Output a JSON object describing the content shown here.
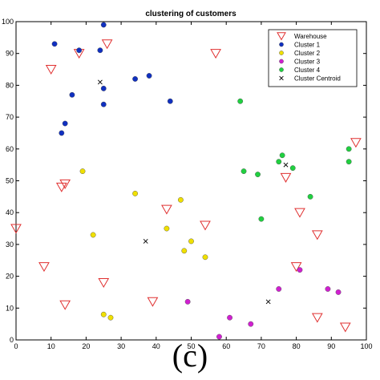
{
  "chart_data": {
    "type": "scatter",
    "title": "clustering of customers",
    "xlim": [
      0,
      100
    ],
    "ylim": [
      0,
      100
    ],
    "xticks": [
      0,
      10,
      20,
      30,
      40,
      50,
      60,
      70,
      80,
      90,
      100
    ],
    "yticks": [
      0,
      10,
      20,
      30,
      40,
      50,
      60,
      70,
      80,
      90,
      100
    ],
    "grid": false,
    "legend_position": "top-right",
    "series": [
      {
        "name": "Warehouse",
        "marker": "triangle-down-open",
        "color": "#e03030",
        "points": [
          [
            18,
            90
          ],
          [
            26,
            93
          ],
          [
            10,
            85
          ],
          [
            57,
            90
          ],
          [
            13,
            48
          ],
          [
            14,
            49
          ],
          [
            97,
            62
          ],
          [
            77,
            51
          ],
          [
            43,
            41
          ],
          [
            81,
            40
          ],
          [
            0,
            35
          ],
          [
            54,
            36
          ],
          [
            86,
            33
          ],
          [
            8,
            23
          ],
          [
            80,
            23
          ],
          [
            25,
            18
          ],
          [
            14,
            11
          ],
          [
            39,
            12
          ],
          [
            86,
            7
          ],
          [
            94,
            4
          ]
        ]
      },
      {
        "name": "Cluster 1",
        "marker": "circle",
        "color": "#1030c0",
        "points": [
          [
            25,
            99
          ],
          [
            11,
            93
          ],
          [
            18,
            91
          ],
          [
            24,
            91
          ],
          [
            38,
            83
          ],
          [
            34,
            82
          ],
          [
            25,
            79
          ],
          [
            16,
            77
          ],
          [
            44,
            75
          ],
          [
            25,
            74
          ],
          [
            14,
            68
          ],
          [
            13,
            65
          ]
        ]
      },
      {
        "name": "Cluster 2",
        "marker": "circle",
        "color": "#f0e000",
        "points": [
          [
            19,
            53
          ],
          [
            34,
            46
          ],
          [
            47,
            44
          ],
          [
            43,
            35
          ],
          [
            22,
            33
          ],
          [
            50,
            31
          ],
          [
            48,
            28
          ],
          [
            54,
            26
          ],
          [
            25,
            8
          ],
          [
            27,
            7
          ]
        ]
      },
      {
        "name": "Cluster 3",
        "marker": "circle",
        "color": "#d020d0",
        "points": [
          [
            81,
            22
          ],
          [
            75,
            16
          ],
          [
            89,
            16
          ],
          [
            92,
            15
          ],
          [
            49,
            12
          ],
          [
            61,
            7
          ],
          [
            67,
            5
          ],
          [
            58,
            1
          ]
        ]
      },
      {
        "name": "Cluster 4",
        "marker": "circle",
        "color": "#20d040",
        "points": [
          [
            64,
            75
          ],
          [
            95,
            60
          ],
          [
            76,
            58
          ],
          [
            75,
            56
          ],
          [
            95,
            56
          ],
          [
            79,
            54
          ],
          [
            65,
            53
          ],
          [
            69,
            52
          ],
          [
            84,
            45
          ],
          [
            70,
            38
          ]
        ]
      },
      {
        "name": "Cluster Centroid",
        "marker": "x",
        "color": "#000000",
        "points": [
          [
            24,
            81
          ],
          [
            77,
            55
          ],
          [
            37,
            31
          ],
          [
            72,
            12
          ]
        ]
      }
    ]
  },
  "caption": "(c)"
}
